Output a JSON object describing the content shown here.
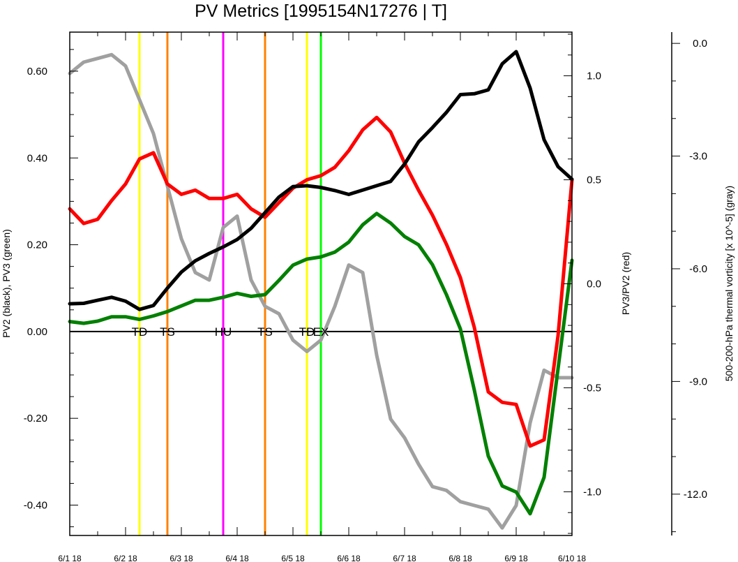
{
  "chart_data": {
    "type": "line",
    "title": "PV Metrics [1995154N17276 | T]",
    "x_tick_labels": [
      "6/1 18",
      "6/2 18",
      "6/3 18",
      "6/4 18",
      "6/5 18",
      "6/6 18",
      "6/7 18",
      "6/8 18",
      "6/9 18",
      "6/10 18"
    ],
    "xlim": [
      0,
      9
    ],
    "ylabel_left": "PV2 (black), PV3 (green)",
    "ylabel_right": "PV3/PV2 (red)",
    "ylabel_far_right": "500-200-hPa thermal vorticity [x 10^-5] (gray)",
    "left_axis": {
      "ylim": [
        -0.47,
        0.69
      ],
      "ticks": [
        0.6,
        0.4,
        0.2,
        0.0,
        -0.2,
        -0.4
      ],
      "tick_labels": [
        "0.60",
        "0.40",
        "0.20",
        "0.00",
        "-0.20",
        "-0.40"
      ]
    },
    "right_axis": {
      "ylim": [
        -1.21,
        1.21
      ],
      "ticks": [
        1.0,
        0.5,
        0.0,
        -0.5,
        -1.0
      ],
      "tick_labels": [
        "1.0",
        "0.5",
        "0.0",
        "-0.5",
        "-1.0"
      ]
    },
    "far_right_axis": {
      "ylim": [
        -13.1,
        0.3
      ],
      "ticks": [
        0,
        -3,
        -6,
        -9,
        -12
      ],
      "tick_labels": [
        "0.0",
        "-3.0",
        "-6.0",
        "-9.0",
        "-12.0"
      ]
    },
    "zero_line": 0,
    "series": [
      {
        "name": "PV2",
        "axis": "left",
        "color": "#000000",
        "x": [
          0,
          0.25,
          0.5,
          0.75,
          1.0,
          1.25,
          1.5,
          1.75,
          2.0,
          2.25,
          2.5,
          2.75,
          3.0,
          3.25,
          3.5,
          3.75,
          4.0,
          4.25,
          4.5,
          4.75,
          5.0,
          5.25,
          5.5,
          5.75,
          6.0,
          6.25,
          6.5,
          6.75,
          7.0,
          7.25,
          7.5,
          7.75,
          8.0,
          8.25,
          8.5,
          8.75,
          9.0
        ],
        "y": [
          0.064,
          0.065,
          0.072,
          0.079,
          0.07,
          0.051,
          0.06,
          0.1,
          0.137,
          0.163,
          0.18,
          0.195,
          0.212,
          0.238,
          0.274,
          0.31,
          0.334,
          0.336,
          0.332,
          0.325,
          0.316,
          0.326,
          0.336,
          0.346,
          0.386,
          0.437,
          0.47,
          0.505,
          0.546,
          0.548,
          0.557,
          0.617,
          0.645,
          0.561,
          0.442,
          0.38,
          0.351
        ]
      },
      {
        "name": "PV3",
        "axis": "left",
        "color": "#008000",
        "x": [
          0,
          0.25,
          0.5,
          0.75,
          1.0,
          1.25,
          1.5,
          1.75,
          2.0,
          2.25,
          2.5,
          2.75,
          3.0,
          3.25,
          3.5,
          3.75,
          4.0,
          4.25,
          4.5,
          4.75,
          5.0,
          5.25,
          5.5,
          5.75,
          6.0,
          6.25,
          6.5,
          6.75,
          7.0,
          7.25,
          7.5,
          7.75,
          8.0,
          8.25,
          8.5,
          8.75,
          9.0
        ],
        "y": [
          0.023,
          0.019,
          0.024,
          0.034,
          0.034,
          0.028,
          0.036,
          0.046,
          0.059,
          0.072,
          0.072,
          0.079,
          0.088,
          0.081,
          0.085,
          0.118,
          0.153,
          0.167,
          0.172,
          0.183,
          0.206,
          0.246,
          0.272,
          0.25,
          0.219,
          0.2,
          0.154,
          0.085,
          0.006,
          -0.135,
          -0.287,
          -0.356,
          -0.37,
          -0.42,
          -0.336,
          -0.086,
          0.164
        ]
      },
      {
        "name": "PV3/PV2",
        "axis": "right",
        "color": "#ff0000",
        "x": [
          0,
          0.25,
          0.5,
          0.75,
          1.0,
          1.25,
          1.5,
          1.75,
          2.0,
          2.25,
          2.5,
          2.75,
          3.0,
          3.25,
          3.5,
          3.75,
          4.0,
          4.25,
          4.5,
          4.75,
          5.0,
          5.25,
          5.5,
          5.75,
          6.0,
          6.25,
          6.5,
          6.75,
          7.0,
          7.25,
          7.5,
          7.75,
          8.0,
          8.25,
          8.5,
          8.75,
          9.0
        ],
        "y": [
          0.36,
          0.29,
          0.31,
          0.4,
          0.48,
          0.6,
          0.63,
          0.48,
          0.43,
          0.45,
          0.41,
          0.41,
          0.43,
          0.36,
          0.32,
          0.39,
          0.46,
          0.5,
          0.52,
          0.56,
          0.64,
          0.74,
          0.8,
          0.73,
          0.58,
          0.45,
          0.33,
          0.19,
          0.03,
          -0.21,
          -0.52,
          -0.57,
          -0.58,
          -0.78,
          -0.75,
          -0.25,
          0.5
        ]
      },
      {
        "name": "thermal vorticity",
        "axis": "far_right",
        "color": "#a0a0a0",
        "x": [
          0,
          0.25,
          0.5,
          0.75,
          1.0,
          1.25,
          1.5,
          1.75,
          2.0,
          2.25,
          2.5,
          2.75,
          3.0,
          3.25,
          3.5,
          3.75,
          4.0,
          4.25,
          4.5,
          4.75,
          5.0,
          5.25,
          5.5,
          5.75,
          6.0,
          6.25,
          6.5,
          6.75,
          7.0,
          7.25,
          7.5,
          7.75,
          8.0,
          8.25,
          8.5,
          8.75,
          9.0
        ],
        "y": [
          -0.8,
          -0.5,
          -0.4,
          -0.3,
          -0.6,
          -1.5,
          -2.4,
          -3.8,
          -5.2,
          -6.1,
          -6.3,
          -4.9,
          -4.6,
          -6.3,
          -7.0,
          -7.2,
          -7.9,
          -8.2,
          -7.9,
          -7.0,
          -5.9,
          -6.1,
          -8.3,
          -10.0,
          -10.5,
          -11.2,
          -11.8,
          -11.9,
          -12.2,
          -12.3,
          -12.4,
          -12.9,
          -12.3,
          -10.1,
          -8.7,
          -8.9,
          -8.9
        ]
      }
    ],
    "markers": [
      {
        "x": 1.25,
        "label": "TD",
        "color": "#ffff00"
      },
      {
        "x": 1.75,
        "label": "TS",
        "color": "#ff8000"
      },
      {
        "x": 2.75,
        "label": "HU",
        "color": "#ff00ff"
      },
      {
        "x": 3.5,
        "label": "TS",
        "color": "#ff8000"
      },
      {
        "x": 4.25,
        "label": "TD",
        "color": "#ffff00"
      },
      {
        "x": 4.5,
        "label": "EX",
        "color": "#00ff00"
      }
    ]
  }
}
